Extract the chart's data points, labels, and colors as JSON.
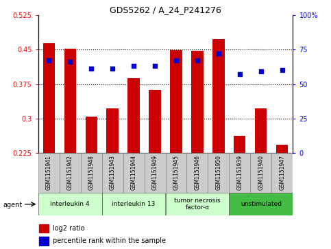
{
  "title": "GDS5262 / A_24_P241276",
  "samples": [
    "GSM1151941",
    "GSM1151942",
    "GSM1151948",
    "GSM1151943",
    "GSM1151944",
    "GSM1151949",
    "GSM1151945",
    "GSM1151946",
    "GSM1151950",
    "GSM1151939",
    "GSM1151940",
    "GSM1151947"
  ],
  "log2_ratio": [
    0.463,
    0.452,
    0.305,
    0.322,
    0.388,
    0.362,
    0.448,
    0.447,
    0.472,
    0.262,
    0.322,
    0.243
  ],
  "percentile_pct": [
    67,
    66,
    61,
    61,
    63,
    63,
    67,
    67,
    72,
    57,
    59,
    60
  ],
  "bar_color": "#cc0000",
  "dot_color": "#0000cc",
  "baseline": 0.225,
  "ylim_left": [
    0.225,
    0.525
  ],
  "ylim_right": [
    0,
    100
  ],
  "yticks_left": [
    0.225,
    0.3,
    0.375,
    0.45,
    0.525
  ],
  "yticks_right": [
    0,
    25,
    50,
    75,
    100
  ],
  "ytick_labels_left": [
    "0.225",
    "0.3",
    "0.375",
    "0.45",
    "0.525"
  ],
  "ytick_labels_right": [
    "0",
    "25",
    "50",
    "75",
    "100%"
  ],
  "groups": [
    {
      "label": "interleukin 4",
      "indices": [
        0,
        1,
        2
      ],
      "color": "#ccffcc"
    },
    {
      "label": "interleukin 13",
      "indices": [
        3,
        4,
        5
      ],
      "color": "#ccffcc"
    },
    {
      "label": "tumor necrosis\nfactor-α",
      "indices": [
        6,
        7,
        8
      ],
      "color": "#ccffcc"
    },
    {
      "label": "unstimulated",
      "indices": [
        9,
        10,
        11
      ],
      "color": "#44bb44"
    }
  ],
  "agent_label": "agent",
  "legend_log2": "log2 ratio",
  "legend_pct": "percentile rank within the sample",
  "sample_bg": "#cccccc",
  "plot_bg": "#ffffff",
  "dotted_line_color": "#000000",
  "grid_yticks": [
    0.3,
    0.375,
    0.45
  ]
}
